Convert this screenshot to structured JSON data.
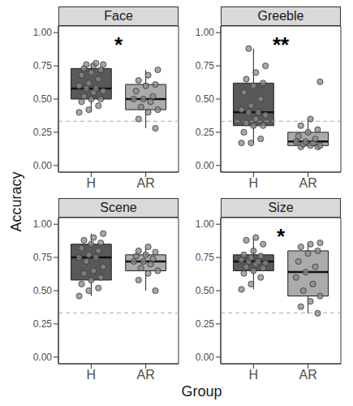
{
  "x_label": "Group",
  "y_label": "Accuracy",
  "chart_data": [
    {
      "type": "box",
      "title": "Face",
      "annotation": "*",
      "categories": [
        "H",
        "AR"
      ],
      "colors": [
        "#595959",
        "#ababab"
      ],
      "values": [
        [
          0.4,
          0.42,
          0.45,
          0.48,
          0.5,
          0.5,
          0.52,
          0.55,
          0.56,
          0.58,
          0.58,
          0.6,
          0.62,
          0.65,
          0.68,
          0.7,
          0.72,
          0.73,
          0.75,
          0.76,
          0.76,
          0.77
        ],
        [
          0.28,
          0.35,
          0.4,
          0.42,
          0.44,
          0.48,
          0.5,
          0.5,
          0.52,
          0.56,
          0.6,
          0.61,
          0.64,
          0.68,
          0.72
        ]
      ],
      "box": [
        {
          "min": 0.4,
          "q1": 0.5,
          "median": 0.58,
          "q3": 0.73,
          "max": 0.77
        },
        {
          "min": 0.28,
          "q1": 0.42,
          "median": 0.5,
          "q3": 0.61,
          "max": 0.72
        }
      ],
      "reference_line": 0.333,
      "ylim": [
        -0.05,
        1.05
      ],
      "yticks": [
        {
          "value": 0,
          "label": "0.00"
        },
        {
          "value": 0.25,
          "label": "0.25"
        },
        {
          "value": 0.5,
          "label": "0.50"
        },
        {
          "value": 0.75,
          "label": "0.75"
        },
        {
          "value": 1,
          "label": "1.00"
        }
      ]
    },
    {
      "type": "box",
      "title": "Greeble",
      "annotation": "**",
      "categories": [
        "H",
        "AR"
      ],
      "colors": [
        "#595959",
        "#ababab"
      ],
      "values": [
        [
          0.17,
          0.17,
          0.2,
          0.25,
          0.3,
          0.3,
          0.32,
          0.35,
          0.38,
          0.4,
          0.4,
          0.42,
          0.45,
          0.5,
          0.55,
          0.6,
          0.62,
          0.65,
          0.7,
          0.75,
          0.88
        ],
        [
          0.14,
          0.14,
          0.15,
          0.15,
          0.16,
          0.17,
          0.18,
          0.18,
          0.2,
          0.22,
          0.25,
          0.27,
          0.3,
          0.35,
          0.63
        ]
      ],
      "box": [
        {
          "min": 0.17,
          "q1": 0.3,
          "median": 0.4,
          "q3": 0.62,
          "max": 0.88
        },
        {
          "min": 0.14,
          "q1": 0.15,
          "median": 0.18,
          "q3": 0.25,
          "max": 0.35
        }
      ],
      "reference_line": 0.333,
      "ylim": [
        -0.05,
        1.05
      ],
      "yticks": [
        {
          "value": 0,
          "label": "0.00"
        },
        {
          "value": 0.25,
          "label": "0.25"
        },
        {
          "value": 0.5,
          "label": "0.50"
        },
        {
          "value": 0.75,
          "label": "0.75"
        },
        {
          "value": 1,
          "label": "1.00"
        }
      ]
    },
    {
      "type": "box",
      "title": "Scene",
      "categories": [
        "H",
        "AR"
      ],
      "colors": [
        "#595959",
        "#ababab"
      ],
      "values": [
        [
          0.46,
          0.5,
          0.52,
          0.55,
          0.58,
          0.6,
          0.63,
          0.65,
          0.68,
          0.72,
          0.75,
          0.75,
          0.77,
          0.8,
          0.82,
          0.85,
          0.86,
          0.88,
          0.9,
          0.93
        ],
        [
          0.5,
          0.58,
          0.63,
          0.65,
          0.67,
          0.7,
          0.72,
          0.72,
          0.74,
          0.76,
          0.77,
          0.79,
          0.8,
          0.83
        ]
      ],
      "box": [
        {
          "min": 0.46,
          "q1": 0.58,
          "median": 0.75,
          "q3": 0.85,
          "max": 0.93
        },
        {
          "min": 0.5,
          "q1": 0.65,
          "median": 0.72,
          "q3": 0.77,
          "max": 0.83
        }
      ],
      "reference_line": 0.333,
      "ylim": [
        -0.05,
        1.05
      ],
      "yticks": [
        {
          "value": 0,
          "label": "0.00"
        },
        {
          "value": 0.25,
          "label": "0.25"
        },
        {
          "value": 0.5,
          "label": "0.50"
        },
        {
          "value": 0.75,
          "label": "0.75"
        },
        {
          "value": 1,
          "label": "1.00"
        }
      ]
    },
    {
      "type": "box",
      "title": "Size",
      "annotation": "*",
      "categories": [
        "H",
        "AR"
      ],
      "colors": [
        "#595959",
        "#ababab"
      ],
      "values": [
        [
          0.51,
          0.55,
          0.6,
          0.63,
          0.65,
          0.67,
          0.68,
          0.7,
          0.71,
          0.72,
          0.72,
          0.73,
          0.75,
          0.76,
          0.77,
          0.8,
          0.85,
          0.88,
          0.9
        ],
        [
          0.33,
          0.38,
          0.42,
          0.46,
          0.5,
          0.55,
          0.6,
          0.64,
          0.68,
          0.72,
          0.78,
          0.8,
          0.83,
          0.85,
          0.86
        ]
      ],
      "box": [
        {
          "min": 0.51,
          "q1": 0.65,
          "median": 0.72,
          "q3": 0.77,
          "max": 0.9
        },
        {
          "min": 0.33,
          "q1": 0.46,
          "median": 0.64,
          "q3": 0.8,
          "max": 0.86
        }
      ],
      "reference_line": 0.333,
      "ylim": [
        -0.05,
        1.05
      ],
      "yticks": [
        {
          "value": 0,
          "label": "0.00"
        },
        {
          "value": 0.25,
          "label": "0.25"
        },
        {
          "value": 0.5,
          "label": "0.50"
        },
        {
          "value": 0.75,
          "label": "0.75"
        },
        {
          "value": 1,
          "label": "1.00"
        }
      ]
    }
  ]
}
